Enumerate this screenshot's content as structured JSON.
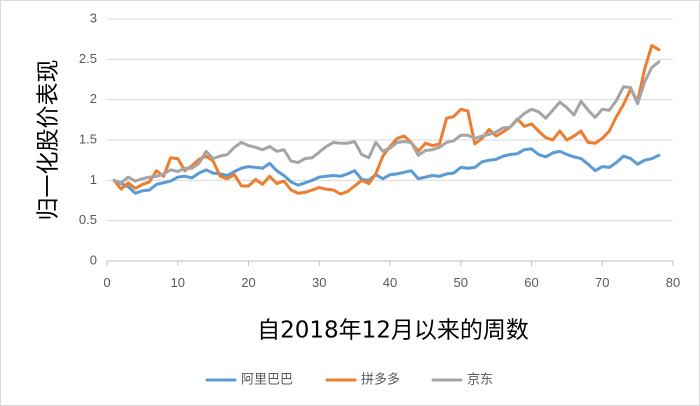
{
  "chart_data": {
    "type": "line",
    "title": "",
    "xlabel": "自2018年12月以来的周数",
    "ylabel": "归一化股价表现",
    "xlim": [
      0,
      80
    ],
    "ylim": [
      0,
      3
    ],
    "x_ticks": [
      0,
      10,
      20,
      30,
      40,
      50,
      60,
      70,
      80
    ],
    "y_ticks": [
      0,
      0.5,
      1,
      1.5,
      2,
      2.5,
      3
    ],
    "y_tick_labels": [
      "0",
      "0.5",
      "1",
      "1.5",
      "2",
      "2.5",
      "3"
    ],
    "grid": "horizontal",
    "legend_position": "bottom",
    "x": [
      1,
      2,
      3,
      4,
      5,
      6,
      7,
      8,
      9,
      10,
      11,
      12,
      13,
      14,
      15,
      16,
      17,
      18,
      19,
      20,
      21,
      22,
      23,
      24,
      25,
      26,
      27,
      28,
      29,
      30,
      31,
      32,
      33,
      34,
      35,
      36,
      37,
      38,
      39,
      40,
      41,
      42,
      43,
      44,
      45,
      46,
      47,
      48,
      49,
      50,
      51,
      52,
      53,
      54,
      55,
      56,
      57,
      58,
      59,
      60,
      61,
      62,
      63,
      64,
      65,
      66,
      67,
      68,
      69,
      70,
      71,
      72,
      73,
      74,
      75,
      76,
      77,
      78
    ],
    "series": [
      {
        "name": "阿里巴巴",
        "color": "#5b9bd5",
        "values": [
          1.0,
          0.96,
          0.92,
          0.84,
          0.87,
          0.88,
          0.95,
          0.97,
          0.99,
          1.04,
          1.05,
          1.03,
          1.09,
          1.13,
          1.09,
          1.08,
          1.06,
          1.11,
          1.15,
          1.17,
          1.16,
          1.15,
          1.21,
          1.12,
          1.06,
          0.98,
          0.94,
          0.97,
          1.0,
          1.04,
          1.05,
          1.06,
          1.05,
          1.08,
          1.12,
          1.01,
          1.0,
          1.07,
          1.02,
          1.07,
          1.08,
          1.1,
          1.12,
          1.02,
          1.04,
          1.06,
          1.05,
          1.08,
          1.09,
          1.16,
          1.15,
          1.16,
          1.23,
          1.25,
          1.26,
          1.3,
          1.32,
          1.33,
          1.38,
          1.39,
          1.32,
          1.29,
          1.34,
          1.36,
          1.32,
          1.29,
          1.27,
          1.2,
          1.12,
          1.17,
          1.16,
          1.22,
          1.3,
          1.27,
          1.2,
          1.25,
          1.27,
          1.31
        ]
      },
      {
        "name": "拼多多",
        "color": "#ed7d31",
        "values": [
          1.0,
          0.89,
          0.97,
          0.9,
          0.95,
          0.98,
          1.12,
          1.05,
          1.28,
          1.27,
          1.12,
          1.18,
          1.26,
          1.3,
          1.24,
          1.05,
          1.02,
          1.07,
          0.93,
          0.93,
          1.01,
          0.95,
          1.05,
          0.96,
          0.99,
          0.88,
          0.84,
          0.85,
          0.88,
          0.91,
          0.89,
          0.88,
          0.83,
          0.86,
          0.93,
          1.0,
          0.96,
          1.08,
          1.3,
          1.42,
          1.52,
          1.55,
          1.47,
          1.36,
          1.46,
          1.43,
          1.45,
          1.77,
          1.79,
          1.88,
          1.86,
          1.45,
          1.52,
          1.63,
          1.55,
          1.6,
          1.66,
          1.76,
          1.67,
          1.7,
          1.61,
          1.53,
          1.5,
          1.61,
          1.5,
          1.55,
          1.61,
          1.47,
          1.46,
          1.52,
          1.61,
          1.79,
          1.94,
          2.13,
          1.98,
          2.38,
          2.67,
          2.62
        ]
      },
      {
        "name": "京东",
        "color": "#a5a5a5",
        "values": [
          1.0,
          0.97,
          1.04,
          0.99,
          1.02,
          1.04,
          1.05,
          1.08,
          1.13,
          1.11,
          1.15,
          1.15,
          1.21,
          1.36,
          1.27,
          1.3,
          1.32,
          1.41,
          1.47,
          1.43,
          1.41,
          1.38,
          1.42,
          1.36,
          1.38,
          1.24,
          1.22,
          1.27,
          1.28,
          1.35,
          1.42,
          1.47,
          1.46,
          1.46,
          1.48,
          1.32,
          1.28,
          1.47,
          1.36,
          1.4,
          1.47,
          1.48,
          1.47,
          1.31,
          1.37,
          1.38,
          1.41,
          1.47,
          1.49,
          1.56,
          1.56,
          1.52,
          1.55,
          1.57,
          1.6,
          1.65,
          1.66,
          1.75,
          1.83,
          1.88,
          1.85,
          1.77,
          1.87,
          1.97,
          1.9,
          1.81,
          1.98,
          1.87,
          1.78,
          1.88,
          1.87,
          1.99,
          2.16,
          2.15,
          1.95,
          2.22,
          2.4,
          2.47
        ]
      }
    ]
  }
}
